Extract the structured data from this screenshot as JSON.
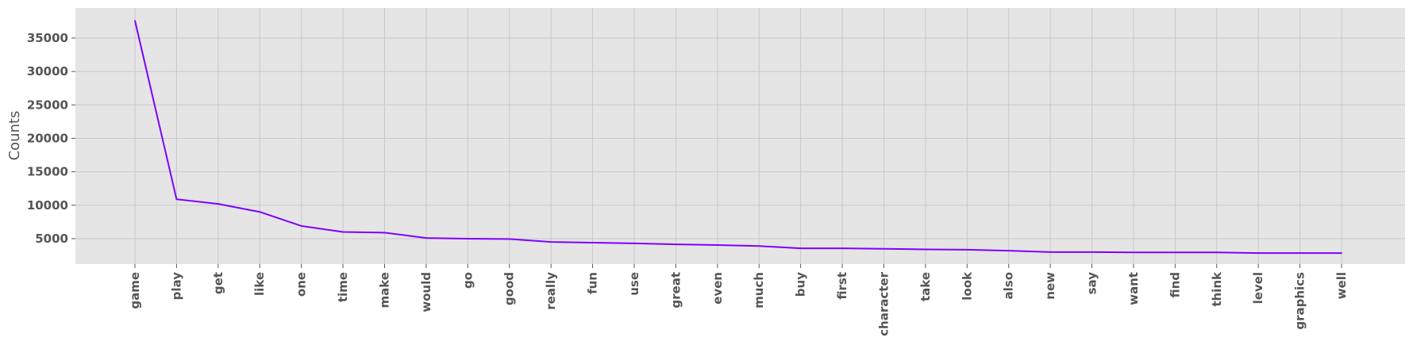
{
  "chart_data": {
    "type": "line",
    "ylabel": "Counts",
    "xlabel": "",
    "title": "",
    "grid": true,
    "ylim": [
      1200,
      39500
    ],
    "yticks": [
      5000,
      10000,
      15000,
      20000,
      25000,
      30000,
      35000
    ],
    "categories": [
      "game",
      "play",
      "get",
      "like",
      "one",
      "time",
      "make",
      "would",
      "go",
      "good",
      "really",
      "fun",
      "use",
      "great",
      "even",
      "much",
      "buy",
      "first",
      "character",
      "take",
      "look",
      "also",
      "new",
      "say",
      "want",
      "find",
      "think",
      "level",
      "graphics",
      "well"
    ],
    "series": [
      {
        "values": [
          37600,
          10900,
          10200,
          9000,
          6900,
          6000,
          5900,
          5100,
          5000,
          4950,
          4500,
          4400,
          4300,
          4150,
          4050,
          3900,
          3550,
          3550,
          3480,
          3400,
          3350,
          3200,
          3000,
          3000,
          2950,
          2950,
          2950,
          2850,
          2850,
          2850
        ],
        "color": "#7f00ff"
      }
    ],
    "colors": {
      "plot_background": "#e5e5e5",
      "grid": "#c8c8c8",
      "text": "#555555"
    }
  }
}
